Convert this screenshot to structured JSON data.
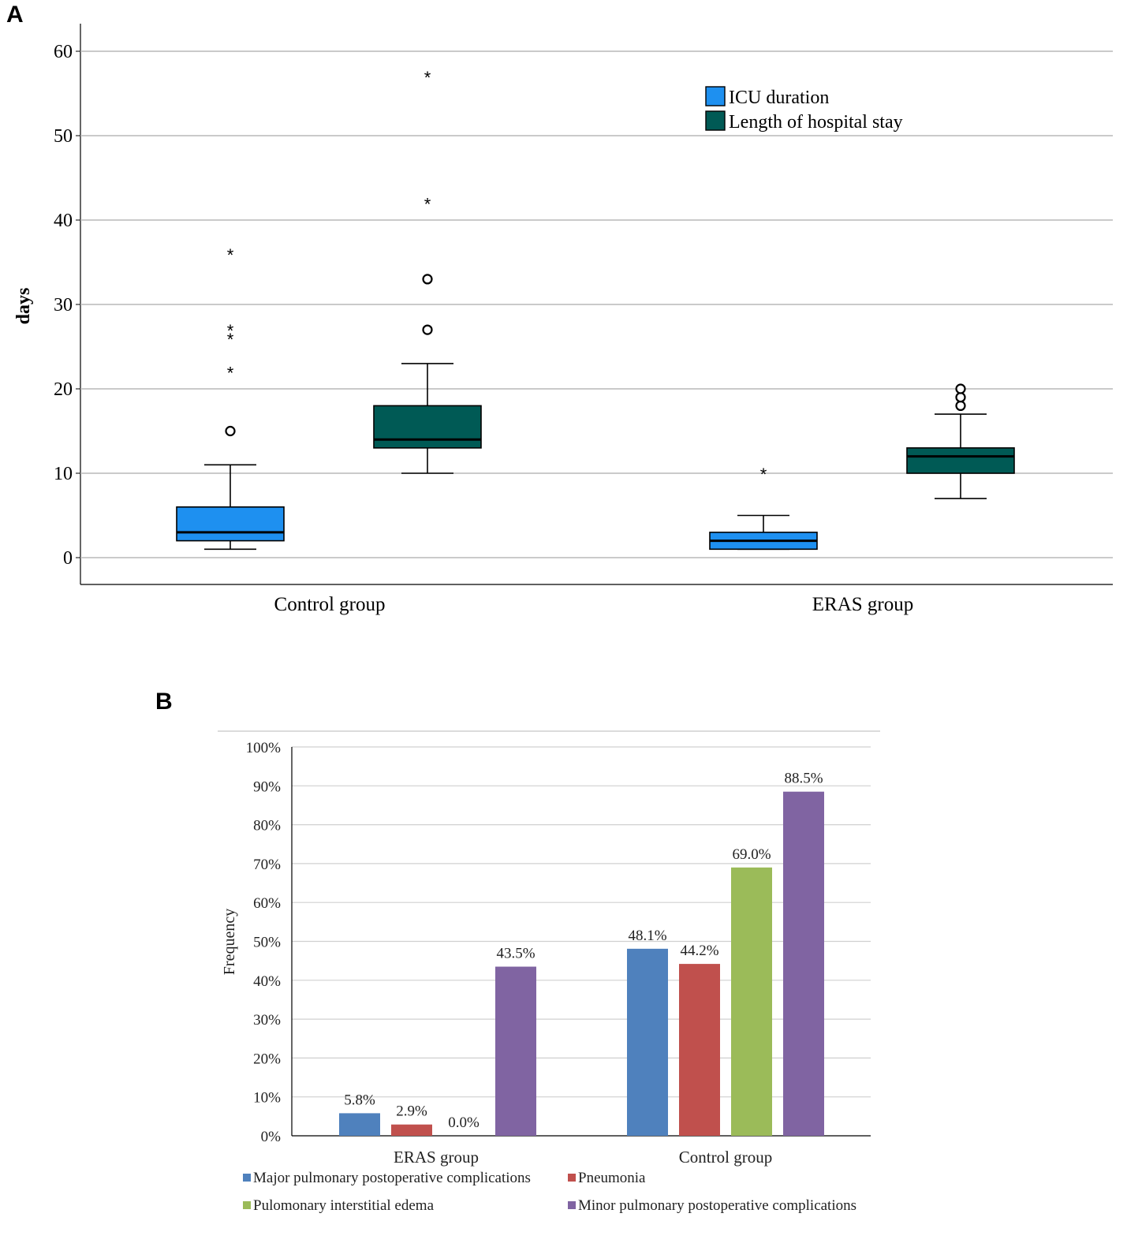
{
  "panels": {
    "a_label": "A",
    "b_label": "B"
  },
  "chart_data": [
    {
      "type": "boxplot",
      "ylabel": "days",
      "ylim": [
        0,
        60
      ],
      "yticks": [
        0,
        10,
        20,
        30,
        40,
        50,
        60
      ],
      "categories": [
        "Control group",
        "ERAS group"
      ],
      "legend": {
        "position": "top-right",
        "entries": [
          "ICU duration",
          "Length of hospital stay"
        ]
      },
      "colors": {
        "ICU duration": "#1e90f0",
        "Length of hospital stay": "#005a55"
      },
      "series": [
        {
          "name": "ICU duration",
          "boxes": [
            {
              "category": "Control group",
              "min": 1,
              "q1": 2,
              "median": 3,
              "q3": 6,
              "max": 11,
              "outliers": [
                15
              ],
              "extremes": [
                22,
                26,
                27,
                36
              ]
            },
            {
              "category": "ERAS group",
              "min": 1,
              "q1": 1,
              "median": 2,
              "q3": 3,
              "max": 5,
              "outliers": [],
              "extremes": [
                10
              ]
            }
          ]
        },
        {
          "name": "Length of hospital stay",
          "boxes": [
            {
              "category": "Control group",
              "min": 10,
              "q1": 13,
              "median": 14,
              "q3": 18,
              "max": 23,
              "outliers": [
                27,
                33
              ],
              "extremes": [
                42,
                57
              ]
            },
            {
              "category": "ERAS group",
              "min": 7,
              "q1": 10,
              "median": 12,
              "q3": 13,
              "max": 17,
              "outliers": [
                18,
                19,
                20
              ],
              "extremes": []
            }
          ]
        }
      ]
    },
    {
      "type": "bar",
      "ylabel": "Frequency",
      "ylim": [
        0,
        100
      ],
      "yticks": [
        "0%",
        "10%",
        "20%",
        "30%",
        "40%",
        "50%",
        "60%",
        "70%",
        "80%",
        "90%",
        "100%"
      ],
      "categories": [
        "ERAS group",
        "Control  group"
      ],
      "legend": {
        "position": "bottom"
      },
      "series": [
        {
          "name": "Major pulmonary postoperative complications",
          "color": "#4f81bd",
          "values": [
            5.8,
            48.1
          ],
          "labels": [
            "5.8%",
            "48.1%"
          ]
        },
        {
          "name": "Pneumonia",
          "color": "#c0504d",
          "values": [
            2.9,
            44.2
          ],
          "labels": [
            "2.9%",
            "44.2%"
          ]
        },
        {
          "name": "Pulomonary interstitial edema",
          "color": "#9bbb59",
          "values": [
            0.0,
            69.0
          ],
          "labels": [
            "0.0%",
            "69.0%"
          ]
        },
        {
          "name": "Minor pulmonary postoperative complications",
          "color": "#8064a2",
          "values": [
            43.5,
            88.5
          ],
          "labels": [
            "",
            "88.5%"
          ]
        }
      ],
      "extra_labels": [
        {
          "text": "43.5%",
          "series": 3,
          "category": 0
        }
      ]
    }
  ]
}
